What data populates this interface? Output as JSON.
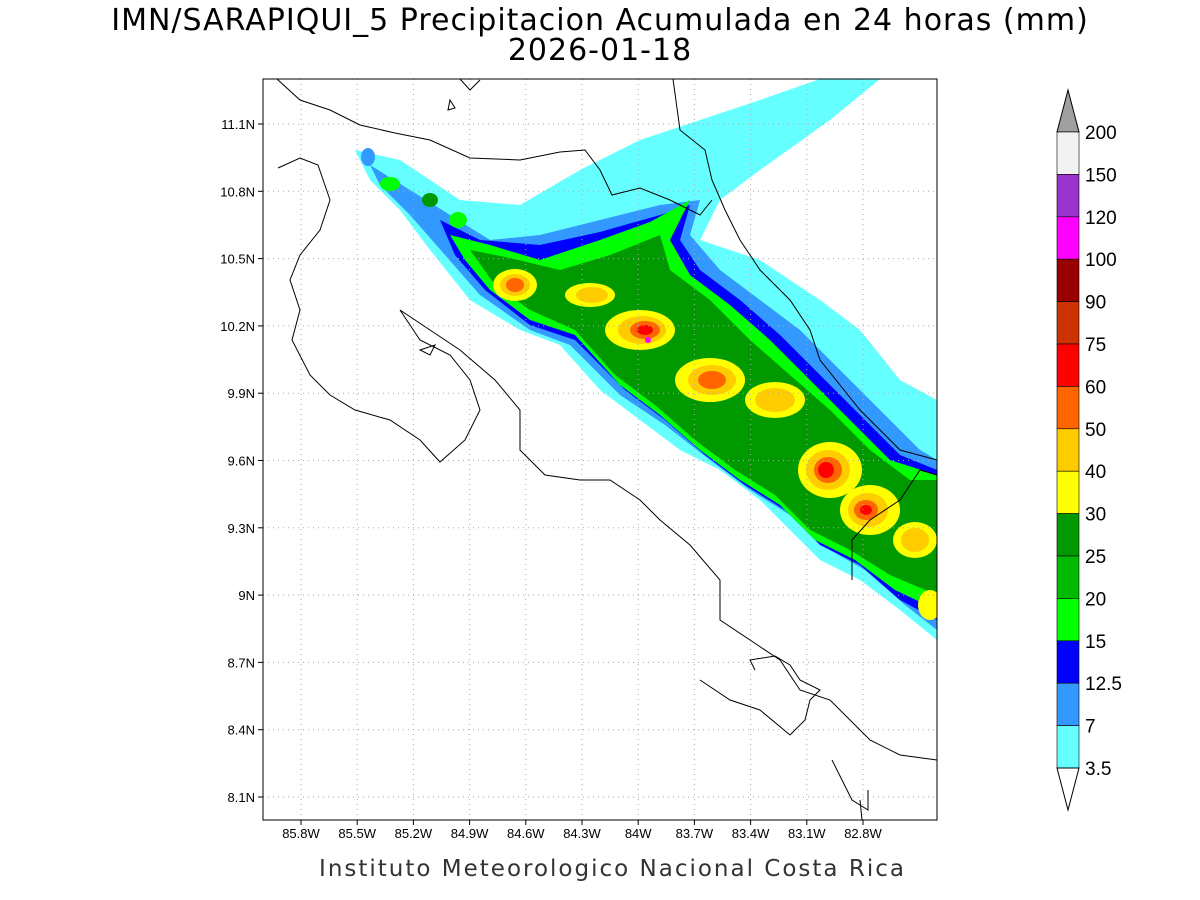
{
  "title": {
    "line1": "IMN/SARAPIQUI_5 Precipitacion Acumulada en 24 horas (mm)",
    "line2": "2026-01-18"
  },
  "footer": "Instituto Meteorologico Nacional Costa Rica",
  "chart_data": {
    "type": "heatmap",
    "x_ticks": [
      "85.8W",
      "85.5W",
      "85.2W",
      "84.9W",
      "84.6W",
      "84.3W",
      "84W",
      "83.7W",
      "83.4W",
      "83.1W",
      "82.8W"
    ],
    "y_ticks": [
      "11.1N",
      "10.8N",
      "10.5N",
      "10.2N",
      "9.9N",
      "9.6N",
      "9.3N",
      "9N",
      "8.7N",
      "8.4N",
      "8.1N"
    ],
    "grid": true,
    "legend_placement": "right",
    "colorbar": {
      "labels": [
        "200",
        "150",
        "120",
        "100",
        "90",
        "75",
        "60",
        "50",
        "40",
        "30",
        "25",
        "20",
        "15",
        "12.5",
        "7",
        "3.5"
      ],
      "colors": [
        "#f2f2f2",
        "#9933cc",
        "#ff00ff",
        "#990000",
        "#cc3300",
        "#ff0000",
        "#ff6600",
        "#ffcc00",
        "#ffff00",
        "#009900",
        "#00bb00",
        "#00ff00",
        "#0000ff",
        "#3399ff",
        "#66ffff"
      ],
      "over_color": "#a0a0a0"
    }
  }
}
